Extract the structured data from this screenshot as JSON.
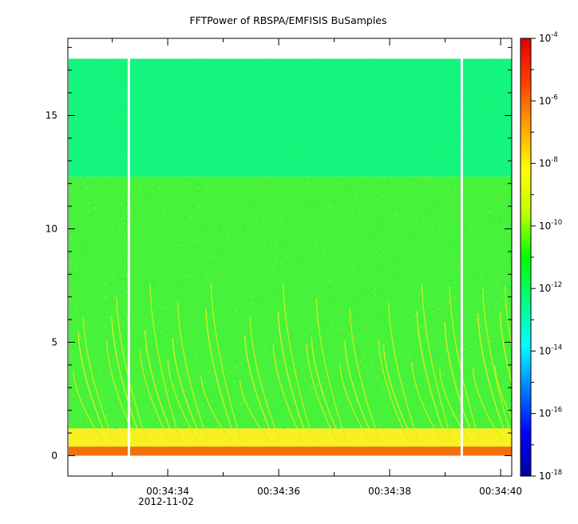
{
  "chart_data": {
    "type": "heatmap",
    "title": "FFTPower of RBSPA/EMFISIS  BuSamples",
    "xlabel": "",
    "ylabel": "",
    "x_tick_labels": [
      "00:34:34",
      "00:34:36",
      "00:34:38",
      "00:34:40"
    ],
    "x_date_label": "2012-11-02",
    "x_range_seconds": [
      "00:34:32.2",
      "00:34:40.2"
    ],
    "y_ticks": [
      0,
      5,
      10,
      15
    ],
    "ylim": [
      -0.9,
      18.4
    ],
    "data_frequency_range": [
      0,
      17.5
    ],
    "colorbar": {
      "scale": "log",
      "min": "1e-18",
      "max": "1e-4",
      "tick_base": "10",
      "tick_exponents": [
        "-4",
        "-6",
        "-8",
        "-10",
        "-12",
        "-14",
        "-16",
        "-18"
      ],
      "colors": [
        "#0000a0",
        "#0000ff",
        "#0080ff",
        "#00ffff",
        "#00ff80",
        "#00ff00",
        "#c0ff00",
        "#ffff00",
        "#ffa000",
        "#ff4000",
        "#e00000"
      ]
    },
    "bands": [
      {
        "y_from": 12.3,
        "y_to": 17.5,
        "level": "1e-12",
        "color": "#14f57e"
      },
      {
        "y_from": 1.2,
        "y_to": 12.3,
        "level": "1e-10",
        "color": "#46f23a"
      },
      {
        "y_from": 0.4,
        "y_to": 1.2,
        "level": "1e-8",
        "color": "#f8f020"
      },
      {
        "y_from": 0,
        "y_to": 0.4,
        "level": "1e-6",
        "color": "#f07010"
      }
    ],
    "gaps_x": [
      "00:34:33.3",
      "00:34:39.3"
    ],
    "chorus_start_times": [
      "00:34:32.3",
      "00:34:32.9",
      "00:34:33.5",
      "00:34:34.0",
      "00:34:34.6",
      "00:34:35.3",
      "00:34:35.9",
      "00:34:36.5",
      "00:34:37.1",
      "00:34:37.8",
      "00:34:38.4",
      "00:34:38.9",
      "00:34:39.5",
      "00:34:39.9"
    ],
    "grid": false
  }
}
